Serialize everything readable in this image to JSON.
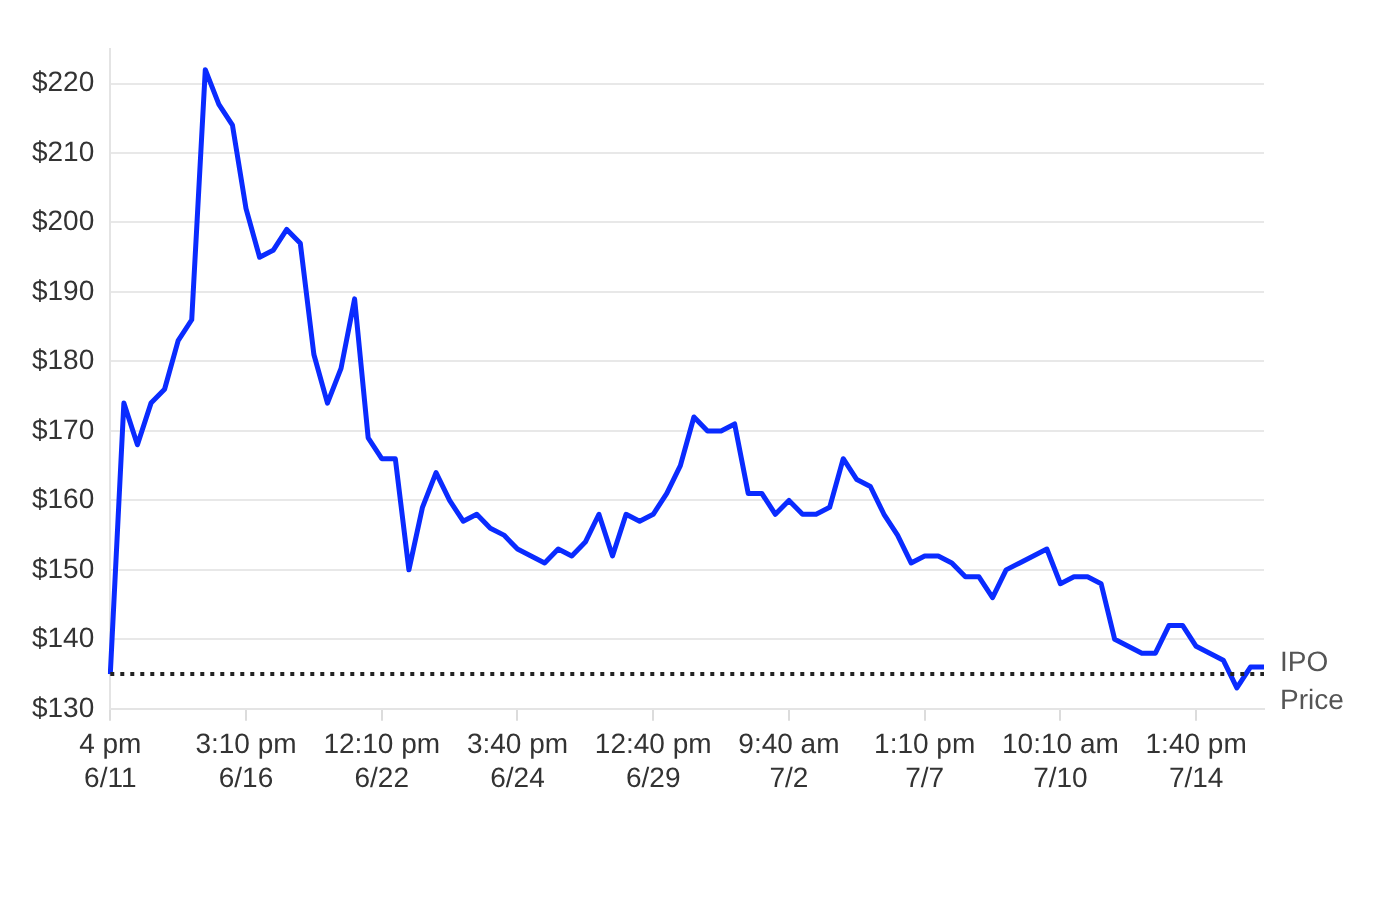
{
  "chart_data": {
    "type": "line",
    "categories": [
      "4 pm\n6/11",
      null,
      null,
      null,
      null,
      null,
      null,
      null,
      null,
      null,
      "3:10 pm\n6/16",
      null,
      null,
      null,
      null,
      null,
      null,
      null,
      null,
      null,
      "12:10 pm\n6/22",
      null,
      null,
      null,
      null,
      null,
      null,
      null,
      null,
      null,
      "3:40 pm\n6/24",
      null,
      null,
      null,
      null,
      null,
      null,
      null,
      null,
      null,
      "12:40 pm\n6/29",
      null,
      null,
      null,
      null,
      null,
      null,
      null,
      null,
      null,
      "9:40 am\n7/2",
      null,
      null,
      null,
      null,
      null,
      null,
      null,
      null,
      null,
      "1:10 pm\n7/7",
      null,
      null,
      null,
      null,
      null,
      null,
      null,
      null,
      null,
      "10:10 am\n7/10",
      null,
      null,
      null,
      null,
      null,
      null,
      null,
      null,
      null,
      "1:40 pm\n7/14",
      null,
      null,
      null,
      null,
      null
    ],
    "series": [
      {
        "color": "#0a2bff",
        "values": [
          135,
          174,
          168,
          174,
          176,
          183,
          186,
          222,
          217,
          214,
          202,
          195,
          196,
          199,
          197,
          181,
          174,
          179,
          189,
          169,
          166,
          166,
          150,
          159,
          164,
          160,
          157,
          158,
          156,
          155,
          153,
          152,
          151,
          153,
          152,
          154,
          158,
          152,
          158,
          157,
          158,
          161,
          165,
          172,
          170,
          170,
          171,
          161,
          161,
          158,
          160,
          158,
          158,
          159,
          166,
          163,
          162,
          158,
          155,
          151,
          152,
          152,
          151,
          149,
          149,
          146,
          150,
          151,
          152,
          153,
          148,
          149,
          149,
          148,
          140,
          139,
          138,
          138,
          142,
          142,
          139,
          138,
          137,
          133,
          136,
          136
        ]
      }
    ],
    "ylim": [
      130,
      225
    ],
    "yticks": [
      {
        "value": 130,
        "label": "$130"
      },
      {
        "value": 140,
        "label": "$140"
      },
      {
        "value": 150,
        "label": "$150"
      },
      {
        "value": 160,
        "label": "$160"
      },
      {
        "value": 170,
        "label": "$170"
      },
      {
        "value": 180,
        "label": "$180"
      },
      {
        "value": 190,
        "label": "$190"
      },
      {
        "value": 200,
        "label": "$200"
      },
      {
        "value": 210,
        "label": "$210"
      },
      {
        "value": 220,
        "label": "$220"
      }
    ],
    "grid": "y",
    "legend": false,
    "marker": "none",
    "line_style": "solid",
    "ref_lines": [
      {
        "axis": "y",
        "value": 135,
        "label": "IPO Price",
        "color": "#222222",
        "line_style": "dotted"
      }
    ]
  }
}
